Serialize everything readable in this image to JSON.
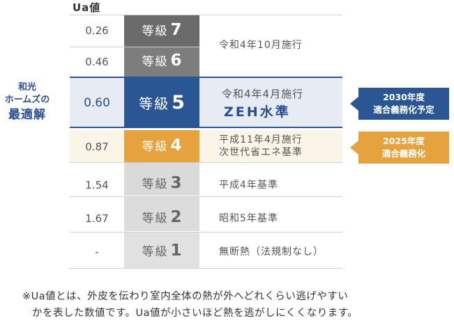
{
  "header": {
    "ua_label": "Ua値"
  },
  "side_label": {
    "line1": "和光",
    "line2": "ホームズの",
    "line3": "最適解"
  },
  "rows": [
    {
      "ua": "0.26",
      "grade_prefix": "等級",
      "grade_num": "7"
    },
    {
      "ua": "0.46",
      "grade_prefix": "等級",
      "grade_num": "6"
    },
    {
      "ua": "0.60",
      "grade_prefix": "等級",
      "grade_num": "5",
      "desc1": "令和4年4月施行",
      "desc2": "ZEH水準"
    },
    {
      "ua": "0.87",
      "grade_prefix": "等級",
      "grade_num": "4",
      "desc1": "平成11年4月施行",
      "desc2": "次世代省エネ基準"
    },
    {
      "ua": "1.54",
      "grade_prefix": "等級",
      "grade_num": "3",
      "desc1": "平成4年基準"
    },
    {
      "ua": "1.67",
      "grade_prefix": "等級",
      "grade_num": "2",
      "desc1": "昭和5年基準"
    },
    {
      "ua": "-",
      "grade_prefix": "等級",
      "grade_num": "1",
      "desc1": "無断熱（法規制なし）"
    }
  ],
  "merged_desc_7_6": "令和4年10月施行",
  "badges": {
    "blue": {
      "line1": "2030年度",
      "line2": "適合義務化予定"
    },
    "orange": {
      "line1": "2025年度",
      "line2": "適合義務化"
    }
  },
  "footnote": {
    "line1": "※Ua値とは、外皮を伝わり室内全体の熱が外へどれくらい逃げやすい",
    "line2": "かを表した数値です。Ua値が小さいほど熱を逃がしにくくなります。"
  },
  "colors": {
    "grade7": "#6b6b6b",
    "grade6": "#7d7d7d",
    "grade5": "#2a5694",
    "grade4": "#e5a23d",
    "grade_low": "#dadada",
    "row5_bg": "#e6ebf4",
    "row4_bg": "#fbf5e8"
  }
}
